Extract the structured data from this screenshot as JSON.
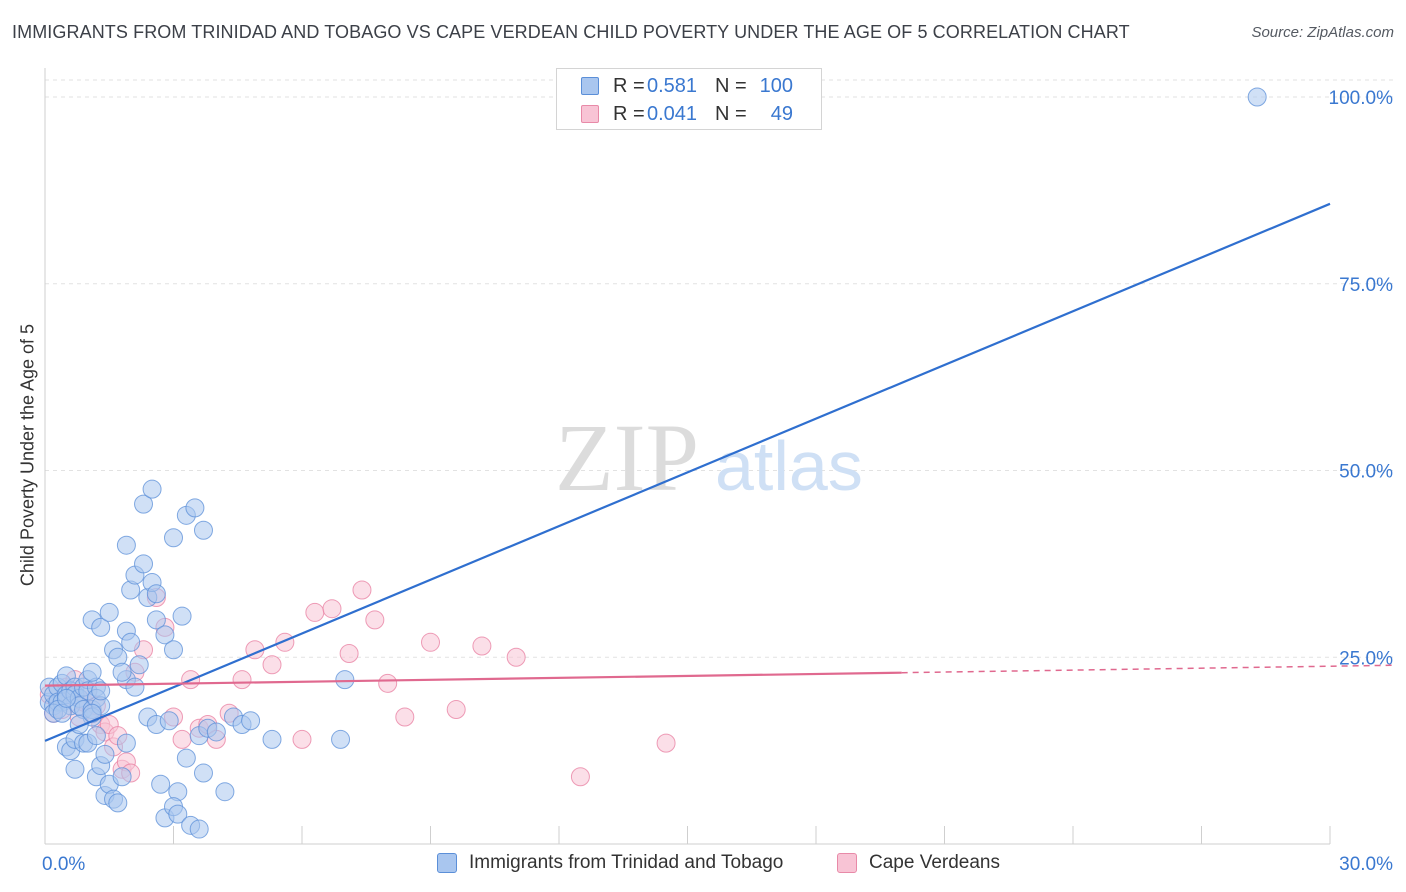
{
  "title": "IMMIGRANTS FROM TRINIDAD AND TOBAGO VS CAPE VERDEAN CHILD POVERTY UNDER THE AGE OF 5 CORRELATION CHART",
  "source": "Source: ZipAtlas.com",
  "watermark": {
    "zip": "ZIP",
    "atlas": "atlas"
  },
  "legend": {
    "r_label": "R =",
    "n_label": "N =",
    "rows": [
      {
        "r": "0.581",
        "n": "100",
        "color": "#a9c6ef",
        "border": "#5b8fd8"
      },
      {
        "r": "0.041",
        "n": "49",
        "color": "#f8c4d5",
        "border": "#e88aa8"
      }
    ]
  },
  "chart_data": {
    "type": "scatter",
    "title": "IMMIGRANTS FROM TRINIDAD AND TOBAGO VS CAPE VERDEAN CHILD POVERTY UNDER THE AGE OF 5 CORRELATION CHART",
    "xlabel": "",
    "ylabel": "Child Poverty Under the Age of 5",
    "xlim": [
      0,
      30
    ],
    "ylim": [
      0,
      100
    ],
    "x_tick_labels": [
      "0.0%",
      "30.0%"
    ],
    "y_ticks": [
      25,
      50,
      75,
      100
    ],
    "y_tick_labels": [
      "25.0%",
      "50.0%",
      "75.0%",
      "100.0%"
    ],
    "grid": true,
    "legend_position": "top-center",
    "series": [
      {
        "name": "Immigrants from Trinidad and Tobago",
        "color": "#5b8fd8",
        "fill": "#a9c6ef",
        "r": 0.581,
        "n": 100,
        "trendline": {
          "x": [
            0,
            30
          ],
          "y": [
            13.8,
            85.7
          ],
          "dashed_from": null
        },
        "points": [
          [
            0.1,
            19
          ],
          [
            0.1,
            21
          ],
          [
            0.2,
            18.5
          ],
          [
            0.2,
            20
          ],
          [
            0.3,
            21
          ],
          [
            0.3,
            19
          ],
          [
            0.4,
            19
          ],
          [
            0.4,
            21.5
          ],
          [
            0.5,
            22.5
          ],
          [
            0.5,
            20
          ],
          [
            0.6,
            20.5
          ],
          [
            0.6,
            18.5
          ],
          [
            0.7,
            21
          ],
          [
            0.7,
            20
          ],
          [
            0.8,
            19.5
          ],
          [
            0.8,
            18.5
          ],
          [
            0.9,
            18
          ],
          [
            0.9,
            21
          ],
          [
            1.0,
            22
          ],
          [
            1.0,
            20.5
          ],
          [
            1.1,
            18
          ],
          [
            1.1,
            17
          ],
          [
            1.2,
            21
          ],
          [
            1.2,
            19.5
          ],
          [
            1.3,
            18.5
          ],
          [
            1.3,
            20.5
          ],
          [
            0.2,
            17.5
          ],
          [
            0.3,
            18
          ],
          [
            0.4,
            17.5
          ],
          [
            0.5,
            19.5
          ],
          [
            0.5,
            13
          ],
          [
            0.6,
            12.5
          ],
          [
            0.7,
            14
          ],
          [
            0.7,
            10
          ],
          [
            0.8,
            16
          ],
          [
            0.9,
            13.5
          ],
          [
            1.0,
            13.5
          ],
          [
            1.1,
            17.5
          ],
          [
            1.1,
            23
          ],
          [
            1.2,
            14.5
          ],
          [
            1.2,
            9
          ],
          [
            1.3,
            10.5
          ],
          [
            1.4,
            12
          ],
          [
            1.4,
            6.5
          ],
          [
            1.5,
            8
          ],
          [
            1.6,
            6
          ],
          [
            1.7,
            5.5
          ],
          [
            1.8,
            9
          ],
          [
            1.9,
            22
          ],
          [
            1.9,
            13.5
          ],
          [
            1.1,
            30
          ],
          [
            1.3,
            29
          ],
          [
            1.5,
            31
          ],
          [
            1.6,
            26
          ],
          [
            1.7,
            25
          ],
          [
            1.8,
            23
          ],
          [
            1.9,
            28.5
          ],
          [
            2.0,
            27
          ],
          [
            2.1,
            21
          ],
          [
            2.2,
            24
          ],
          [
            2.0,
            34
          ],
          [
            2.1,
            36
          ],
          [
            2.3,
            37.5
          ],
          [
            2.4,
            33
          ],
          [
            2.5,
            35
          ],
          [
            2.6,
            33.5
          ],
          [
            2.6,
            30
          ],
          [
            2.8,
            28
          ],
          [
            3.0,
            26
          ],
          [
            3.2,
            30.5
          ],
          [
            1.9,
            40
          ],
          [
            2.3,
            45.5
          ],
          [
            2.5,
            47.5
          ],
          [
            3.0,
            41
          ],
          [
            3.3,
            44
          ],
          [
            3.5,
            45
          ],
          [
            3.7,
            42
          ],
          [
            2.4,
            17
          ],
          [
            2.6,
            16
          ],
          [
            2.7,
            8
          ],
          [
            2.9,
            16.5
          ],
          [
            3.1,
            7
          ],
          [
            3.3,
            11.5
          ],
          [
            3.6,
            14.5
          ],
          [
            3.7,
            9.5
          ],
          [
            3.8,
            15.5
          ],
          [
            4.0,
            15
          ],
          [
            4.2,
            7
          ],
          [
            4.4,
            17
          ],
          [
            4.6,
            16
          ],
          [
            4.8,
            16.5
          ],
          [
            5.3,
            14
          ],
          [
            6.9,
            14
          ],
          [
            7.0,
            22
          ],
          [
            2.8,
            3.5
          ],
          [
            3.0,
            5
          ],
          [
            3.1,
            4
          ],
          [
            3.4,
            2.5
          ],
          [
            3.6,
            2
          ],
          [
            28.3,
            100
          ]
        ]
      },
      {
        "name": "Cape Verdeans",
        "color": "#e87ea0",
        "fill": "#f8c4d5",
        "r": 0.041,
        "n": 49,
        "trendline": {
          "x": [
            0,
            30
          ],
          "y": [
            21.2,
            23.8
          ],
          "dashed_from": 20
        },
        "points": [
          [
            0.1,
            20
          ],
          [
            0.2,
            17.5
          ],
          [
            0.3,
            19
          ],
          [
            0.4,
            18
          ],
          [
            0.5,
            21
          ],
          [
            0.6,
            20.5
          ],
          [
            0.7,
            22
          ],
          [
            0.8,
            17
          ],
          [
            0.9,
            19
          ],
          [
            1.0,
            20.5
          ],
          [
            1.1,
            17.5
          ],
          [
            1.2,
            18.5
          ],
          [
            1.3,
            16
          ],
          [
            1.4,
            15
          ],
          [
            1.5,
            16
          ],
          [
            1.6,
            13
          ],
          [
            1.7,
            14.5
          ],
          [
            1.8,
            10
          ],
          [
            1.9,
            11
          ],
          [
            2.0,
            9.5
          ],
          [
            2.1,
            23
          ],
          [
            2.3,
            26
          ],
          [
            2.6,
            33
          ],
          [
            2.8,
            29
          ],
          [
            3.0,
            17
          ],
          [
            3.2,
            14
          ],
          [
            3.4,
            22
          ],
          [
            3.6,
            15.5
          ],
          [
            3.8,
            16
          ],
          [
            4.0,
            14
          ],
          [
            4.3,
            17.5
          ],
          [
            4.6,
            22
          ],
          [
            4.9,
            26
          ],
          [
            5.3,
            24
          ],
          [
            5.6,
            27
          ],
          [
            6.0,
            14
          ],
          [
            6.3,
            31
          ],
          [
            6.7,
            31.5
          ],
          [
            7.1,
            25.5
          ],
          [
            7.4,
            34
          ],
          [
            7.7,
            30
          ],
          [
            8.0,
            21.5
          ],
          [
            8.4,
            17
          ],
          [
            9.0,
            27
          ],
          [
            9.6,
            18
          ],
          [
            10.2,
            26.5
          ],
          [
            11.0,
            25
          ],
          [
            12.5,
            9
          ],
          [
            14.5,
            13.5
          ]
        ]
      }
    ]
  },
  "bottom_legend": [
    {
      "label": "Immigrants from Trinidad and Tobago"
    },
    {
      "label": "Cape Verdeans"
    }
  ]
}
